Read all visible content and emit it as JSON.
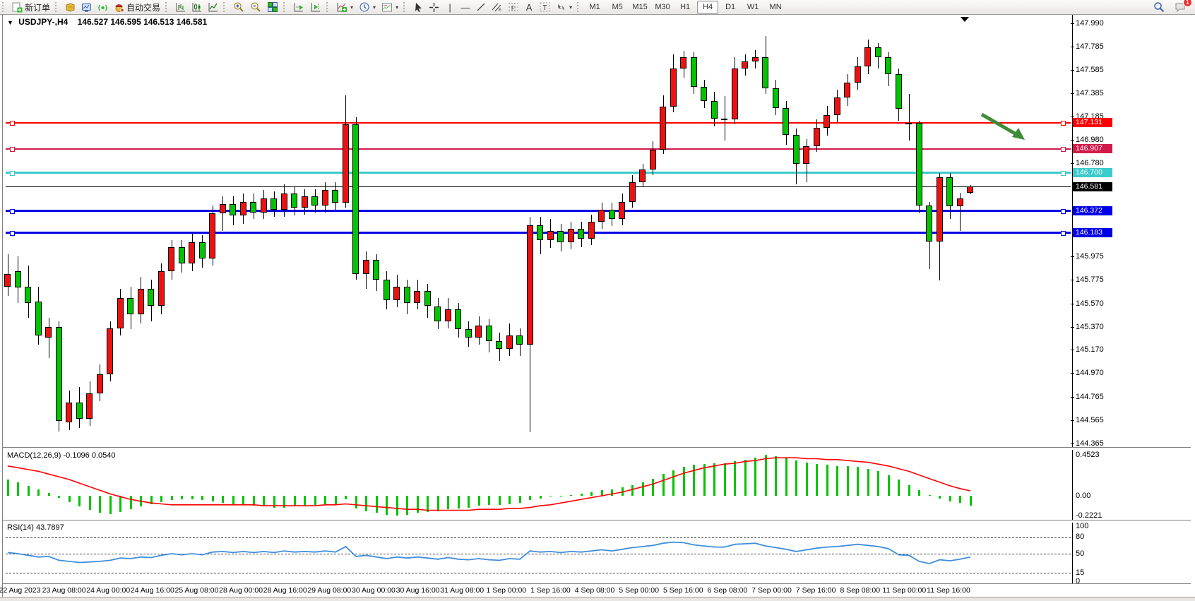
{
  "toolbar": {
    "new_order_label": "新订单",
    "autotrading_label": "自动交易",
    "timeframes": [
      "M1",
      "M5",
      "M15",
      "M30",
      "H1",
      "H4",
      "D1",
      "W1",
      "MN"
    ],
    "active_timeframe": "H4",
    "notification_count": "1"
  },
  "chart": {
    "symbol": "USDJPY-,H4",
    "ohlc_text": "146.527 146.595 146.513 146.581"
  },
  "price_axis": {
    "ticks": [
      "147.990",
      "147.785",
      "147.585",
      "147.385",
      "147.185",
      "146.980",
      "146.780",
      "145.975",
      "145.775",
      "145.570",
      "145.370",
      "145.170",
      "144.970",
      "144.765",
      "144.565",
      "144.365"
    ]
  },
  "hlines": [
    {
      "price": 147.131,
      "label": "147.131",
      "color": "#ff0000",
      "width": 2,
      "handles": true
    },
    {
      "price": 146.907,
      "label": "146.907",
      "color": "#d21a4a",
      "width": 2,
      "handles": true
    },
    {
      "price": 146.7,
      "label": "146.700",
      "color": "#3ccbcb",
      "width": 3,
      "handles": true
    },
    {
      "price": 146.581,
      "label": "146.581",
      "color": "#000000",
      "width": 1,
      "handles": false
    },
    {
      "price": 146.372,
      "label": "146.372",
      "color": "#0000e6",
      "width": 3,
      "handles": true
    },
    {
      "price": 146.183,
      "label": "146.183",
      "color": "#0000e6",
      "width": 3,
      "handles": true
    }
  ],
  "annotation_arrow": {
    "color": "#3f8c38"
  },
  "chart_data": {
    "type": "candlestick",
    "symbol": "USDJPY-",
    "timeframe": "H4",
    "up_color": "#ee1111",
    "down_color": "#00c400",
    "x_labels": [
      "22 Aug 2023",
      "23 Aug 08:00",
      "24 Aug 00:00",
      "24 Aug 16:00",
      "25 Aug 08:00",
      "28 Aug 00:00",
      "28 Aug 16:00",
      "29 Aug 08:00",
      "30 Aug 00:00",
      "30 Aug 16:00",
      "31 Aug 08:00",
      "1 Sep 00:00",
      "1 Sep 16:00",
      "4 Sep 08:00",
      "5 Sep 00:00",
      "5 Sep 16:00",
      "6 Sep 08:00",
      "7 Sep 00:00",
      "7 Sep 16:00",
      "8 Sep 08:00",
      "11 Sep 00:00",
      "11 Sep 16:00"
    ],
    "y_range": [
      144.365,
      147.99
    ],
    "candles": [
      [
        145.72,
        146.0,
        145.64,
        145.83
      ],
      [
        145.85,
        145.98,
        145.58,
        145.71
      ],
      [
        145.72,
        145.9,
        145.45,
        145.58
      ],
      [
        145.59,
        145.72,
        145.22,
        145.3
      ],
      [
        145.28,
        145.45,
        145.1,
        145.37
      ],
      [
        145.37,
        145.42,
        144.47,
        144.56
      ],
      [
        144.55,
        144.82,
        144.48,
        144.72
      ],
      [
        144.72,
        144.85,
        144.5,
        144.58
      ],
      [
        144.58,
        144.9,
        144.52,
        144.8
      ],
      [
        144.8,
        145.05,
        144.73,
        144.96
      ],
      [
        144.96,
        145.42,
        144.9,
        145.36
      ],
      [
        145.36,
        145.7,
        145.3,
        145.62
      ],
      [
        145.62,
        145.72,
        145.35,
        145.48
      ],
      [
        145.48,
        145.8,
        145.4,
        145.7
      ],
      [
        145.7,
        145.78,
        145.42,
        145.55
      ],
      [
        145.55,
        145.92,
        145.48,
        145.85
      ],
      [
        145.85,
        146.12,
        145.78,
        146.06
      ],
      [
        146.06,
        146.12,
        145.84,
        145.92
      ],
      [
        145.92,
        146.18,
        145.85,
        146.1
      ],
      [
        146.1,
        146.16,
        145.88,
        145.96
      ],
      [
        145.96,
        146.42,
        145.9,
        146.35
      ],
      [
        146.35,
        146.5,
        146.2,
        146.43
      ],
      [
        146.43,
        146.5,
        146.25,
        146.33
      ],
      [
        146.33,
        146.52,
        146.26,
        146.45
      ],
      [
        146.45,
        146.52,
        146.3,
        146.36
      ],
      [
        146.36,
        146.55,
        146.3,
        146.48
      ],
      [
        146.48,
        146.54,
        146.32,
        146.38
      ],
      [
        146.38,
        146.6,
        146.32,
        146.52
      ],
      [
        146.52,
        146.58,
        146.33,
        146.4
      ],
      [
        146.4,
        146.56,
        146.34,
        146.5
      ],
      [
        146.5,
        146.56,
        146.36,
        146.42
      ],
      [
        146.42,
        146.62,
        146.36,
        146.55
      ],
      [
        146.55,
        146.62,
        146.38,
        146.44
      ],
      [
        146.44,
        147.37,
        146.4,
        147.12
      ],
      [
        147.12,
        147.18,
        145.78,
        145.83
      ],
      [
        145.83,
        146.02,
        145.7,
        145.95
      ],
      [
        145.95,
        146.0,
        145.68,
        145.78
      ],
      [
        145.78,
        145.85,
        145.52,
        145.6
      ],
      [
        145.6,
        145.82,
        145.54,
        145.72
      ],
      [
        145.72,
        145.78,
        145.48,
        145.58
      ],
      [
        145.58,
        145.78,
        145.52,
        145.68
      ],
      [
        145.68,
        145.74,
        145.45,
        145.55
      ],
      [
        145.55,
        145.62,
        145.35,
        145.42
      ],
      [
        145.42,
        145.62,
        145.36,
        145.52
      ],
      [
        145.52,
        145.58,
        145.28,
        145.35
      ],
      [
        145.35,
        145.42,
        145.2,
        145.28
      ],
      [
        145.28,
        145.46,
        145.22,
        145.38
      ],
      [
        145.38,
        145.44,
        145.15,
        145.25
      ],
      [
        145.25,
        145.32,
        145.08,
        145.18
      ],
      [
        145.18,
        145.4,
        145.12,
        145.3
      ],
      [
        145.3,
        145.36,
        145.12,
        145.22
      ],
      [
        145.22,
        146.32,
        144.46,
        146.25
      ],
      [
        146.25,
        146.32,
        146.0,
        146.12
      ],
      [
        146.12,
        146.3,
        146.05,
        146.2
      ],
      [
        146.2,
        146.26,
        146.02,
        146.1
      ],
      [
        146.1,
        146.28,
        146.04,
        146.22
      ],
      [
        146.22,
        146.28,
        146.06,
        146.13
      ],
      [
        146.13,
        146.34,
        146.08,
        146.28
      ],
      [
        146.28,
        146.44,
        146.22,
        146.38
      ],
      [
        146.38,
        146.44,
        146.24,
        146.3
      ],
      [
        146.3,
        146.52,
        146.25,
        146.45
      ],
      [
        146.45,
        146.68,
        146.4,
        146.62
      ],
      [
        146.62,
        146.78,
        146.58,
        146.73
      ],
      [
        146.73,
        146.97,
        146.68,
        146.9
      ],
      [
        146.9,
        147.37,
        146.86,
        147.27
      ],
      [
        147.27,
        147.72,
        147.22,
        147.6
      ],
      [
        147.6,
        147.75,
        147.52,
        147.7
      ],
      [
        147.7,
        147.74,
        147.38,
        147.44
      ],
      [
        147.44,
        147.5,
        147.26,
        147.32
      ],
      [
        147.32,
        147.4,
        147.1,
        147.17
      ],
      [
        147.17,
        147.36,
        146.98,
        147.16
      ],
      [
        147.16,
        147.7,
        147.12,
        147.6
      ],
      [
        147.6,
        147.72,
        147.54,
        147.66
      ],
      [
        147.66,
        147.76,
        147.6,
        147.7
      ],
      [
        147.7,
        147.88,
        147.38,
        147.43
      ],
      [
        147.43,
        147.5,
        147.2,
        147.26
      ],
      [
        147.26,
        147.32,
        146.94,
        147.03
      ],
      [
        147.03,
        147.08,
        146.6,
        146.78
      ],
      [
        146.78,
        146.99,
        146.62,
        146.93
      ],
      [
        146.93,
        147.16,
        146.88,
        147.09
      ],
      [
        147.09,
        147.28,
        147.02,
        147.2
      ],
      [
        147.2,
        147.42,
        147.14,
        147.35
      ],
      [
        147.35,
        147.55,
        147.28,
        147.48
      ],
      [
        147.48,
        147.7,
        147.42,
        147.62
      ],
      [
        147.62,
        147.85,
        147.55,
        147.78
      ],
      [
        147.78,
        147.82,
        147.6,
        147.7
      ],
      [
        147.7,
        147.74,
        147.45,
        147.55
      ],
      [
        147.55,
        147.6,
        147.15,
        147.25
      ],
      [
        147.12,
        147.38,
        146.98,
        147.13
      ],
      [
        147.13,
        147.15,
        146.35,
        146.42
      ],
      [
        146.42,
        146.45,
        145.87,
        146.11
      ],
      [
        146.11,
        146.7,
        145.77,
        146.66
      ],
      [
        146.66,
        146.7,
        146.3,
        146.41
      ],
      [
        146.41,
        146.53,
        146.2,
        146.48
      ],
      [
        146.527,
        146.595,
        146.513,
        146.581
      ]
    ],
    "macd": {
      "label": "MACD(12,26,9)",
      "values_text": "-0.1096 0.0540",
      "axis_labels": [
        "0.4523",
        "0.00",
        "-0.2221"
      ],
      "axis_values": [
        0.4523,
        0,
        -0.2221
      ],
      "hist_color": "#00c400",
      "signal_color": "#ff0000",
      "hist": [
        0.18,
        0.15,
        0.11,
        0.07,
        0.03,
        -0.02,
        -0.07,
        -0.12,
        -0.16,
        -0.19,
        -0.2,
        -0.18,
        -0.15,
        -0.12,
        -0.09,
        -0.07,
        -0.05,
        -0.04,
        -0.04,
        -0.05,
        -0.06,
        -0.08,
        -0.09,
        -0.1,
        -0.11,
        -0.12,
        -0.13,
        -0.13,
        -0.12,
        -0.11,
        -0.1,
        -0.09,
        -0.1,
        -0.04,
        -0.14,
        -0.17,
        -0.19,
        -0.21,
        -0.22,
        -0.21,
        -0.19,
        -0.18,
        -0.17,
        -0.15,
        -0.14,
        -0.13,
        -0.11,
        -0.1,
        -0.1,
        -0.09,
        -0.08,
        -0.05,
        -0.03,
        -0.01,
        0.0,
        0.01,
        0.02,
        0.04,
        0.06,
        0.07,
        0.09,
        0.12,
        0.15,
        0.19,
        0.24,
        0.28,
        0.32,
        0.34,
        0.35,
        0.36,
        0.36,
        0.38,
        0.4,
        0.42,
        0.45,
        0.44,
        0.42,
        0.39,
        0.37,
        0.35,
        0.34,
        0.33,
        0.33,
        0.32,
        0.3,
        0.27,
        0.23,
        0.18,
        0.12,
        0.06,
        0.01,
        -0.03,
        -0.06,
        -0.08,
        -0.11
      ],
      "signal": [
        0.33,
        0.31,
        0.29,
        0.27,
        0.24,
        0.21,
        0.18,
        0.14,
        0.1,
        0.06,
        0.02,
        -0.01,
        -0.04,
        -0.06,
        -0.08,
        -0.09,
        -0.1,
        -0.1,
        -0.1,
        -0.1,
        -0.1,
        -0.1,
        -0.1,
        -0.1,
        -0.1,
        -0.11,
        -0.11,
        -0.11,
        -0.11,
        -0.11,
        -0.11,
        -0.1,
        -0.1,
        -0.09,
        -0.1,
        -0.11,
        -0.12,
        -0.13,
        -0.14,
        -0.15,
        -0.15,
        -0.16,
        -0.16,
        -0.16,
        -0.16,
        -0.16,
        -0.15,
        -0.15,
        -0.15,
        -0.14,
        -0.14,
        -0.13,
        -0.11,
        -0.1,
        -0.08,
        -0.06,
        -0.04,
        -0.02,
        0.0,
        0.02,
        0.04,
        0.07,
        0.1,
        0.13,
        0.17,
        0.21,
        0.25,
        0.28,
        0.31,
        0.33,
        0.35,
        0.36,
        0.38,
        0.39,
        0.41,
        0.42,
        0.42,
        0.42,
        0.41,
        0.41,
        0.4,
        0.4,
        0.39,
        0.38,
        0.37,
        0.35,
        0.33,
        0.3,
        0.27,
        0.23,
        0.19,
        0.15,
        0.11,
        0.08,
        0.054
      ]
    },
    "rsi": {
      "label": "RSI(14)",
      "value_text": "43.7897",
      "axis_labels": [
        "100",
        "80",
        "50",
        "15",
        "0"
      ],
      "axis_values": [
        100,
        80,
        50,
        15,
        0
      ],
      "levels": [
        80,
        50,
        15
      ],
      "color": "#3f8edd",
      "values": [
        52,
        50,
        47,
        44,
        45,
        38,
        36,
        34,
        35,
        36,
        38,
        42,
        41,
        44,
        43,
        47,
        50,
        48,
        50,
        48,
        53,
        54,
        52,
        54,
        52,
        54,
        52,
        55,
        53,
        54,
        53,
        55,
        53,
        63,
        45,
        47,
        44,
        41,
        44,
        42,
        44,
        42,
        40,
        43,
        40,
        39,
        41,
        39,
        38,
        41,
        40,
        55,
        53,
        54,
        52,
        54,
        53,
        55,
        57,
        55,
        58,
        61,
        63,
        65,
        69,
        71,
        70,
        66,
        64,
        62,
        62,
        67,
        68,
        69,
        64,
        61,
        58,
        54,
        57,
        60,
        62,
        63,
        65,
        67,
        65,
        63,
        59,
        48,
        47,
        36,
        32,
        39,
        37,
        40,
        43.79
      ]
    }
  }
}
